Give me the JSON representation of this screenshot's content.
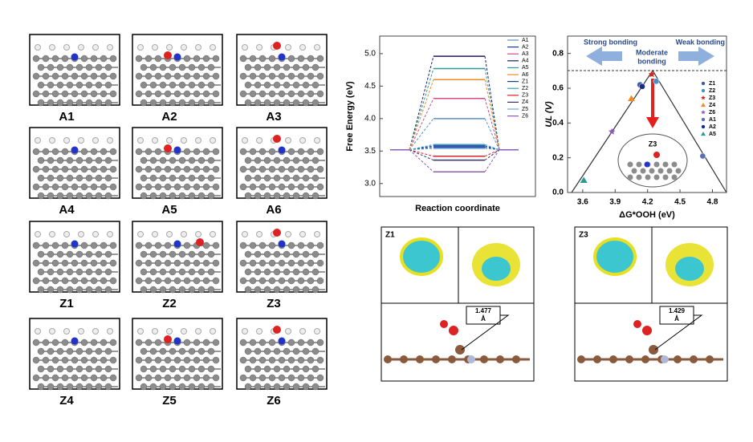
{
  "structures": {
    "labels": [
      "A1",
      "A2",
      "A3",
      "A4",
      "A5",
      "A6",
      "Z1",
      "Z2",
      "Z3",
      "Z4",
      "Z5",
      "Z6"
    ]
  },
  "chart_data": [
    {
      "type": "energy-levels",
      "y_label": "Free Energy (eV)",
      "x_label": "Reaction coordinate",
      "categories": [
        null,
        null,
        null
      ],
      "ylim": [
        2.8,
        5.27
      ],
      "yticks": [
        {
          "value": 3,
          "label": "3.0"
        },
        {
          "value": 3.5,
          "label": "3.5"
        },
        {
          "value": 4,
          "label": "4.0"
        },
        {
          "value": 4.5,
          "label": "4.5"
        },
        {
          "value": 5,
          "label": "5.0"
        }
      ],
      "series": [
        {
          "name": "A1",
          "color": "#5b8fc7",
          "values": [
            3.52,
            4.0,
            3.52
          ]
        },
        {
          "name": "A2",
          "color": "#2233aa",
          "values": [
            3.52,
            3.58,
            3.52
          ]
        },
        {
          "name": "A3",
          "color": "#d64a8a",
          "values": [
            3.52,
            4.31,
            3.52
          ]
        },
        {
          "name": "A4",
          "color": "#1a1a6e",
          "values": [
            3.52,
            4.96,
            3.52
          ]
        },
        {
          "name": "A5",
          "color": "#2a9d8f",
          "values": [
            3.52,
            4.77,
            3.52
          ]
        },
        {
          "name": "A6",
          "color": "#f08a24",
          "values": [
            3.52,
            4.6,
            3.52
          ]
        },
        {
          "name": "Z1",
          "color": "#1f3f8f",
          "values": [
            3.52,
            3.56,
            3.52
          ]
        },
        {
          "name": "Z2",
          "color": "#2aa7b8",
          "values": [
            3.52,
            3.6,
            3.52
          ]
        },
        {
          "name": "Z3",
          "color": "#d62728",
          "values": [
            3.52,
            3.42,
            3.52
          ]
        },
        {
          "name": "Z4",
          "color": "#333366",
          "values": [
            3.52,
            3.36,
            3.52
          ]
        },
        {
          "name": "Z5",
          "color": "#6fa8dc",
          "values": [
            3.52,
            3.54,
            3.52
          ]
        },
        {
          "name": "Z6",
          "color": "#8e5bb5",
          "values": [
            3.52,
            3.18,
            3.52
          ]
        }
      ]
    },
    {
      "type": "scatter",
      "x_label": "ΔG*OOH (eV)",
      "y_label": "UL (V)",
      "xlim": [
        3.46,
        4.93
      ],
      "ylim": [
        0,
        0.9
      ],
      "xticks": [
        3.6,
        3.9,
        4.2,
        4.5,
        4.8
      ],
      "yticks": [
        {
          "value": 0,
          "label": "0.0"
        },
        0.2,
        0.4,
        0.6,
        0.8
      ],
      "annotations": {
        "left": "Strong bonding",
        "right": "Weak bonding",
        "middle": [
          "Moderate",
          "bonding"
        ],
        "inset": "Z3"
      },
      "series": [
        {
          "name": "Z1",
          "color": "#3b5ba5",
          "marker": "circle",
          "x": [
            4.13
          ],
          "values": [
            0.62
          ]
        },
        {
          "name": "Z2",
          "color": "#4a90c8",
          "marker": "circle",
          "x": [
            4.28
          ],
          "values": [
            0.64
          ]
        },
        {
          "name": "Z3",
          "color": "#e3201b",
          "marker": "star",
          "x": [
            4.24
          ],
          "values": [
            0.68
          ]
        },
        {
          "name": "Z4",
          "color": "#f08a24",
          "marker": "triangle",
          "x": [
            4.05
          ],
          "values": [
            0.54
          ]
        },
        {
          "name": "Z6",
          "color": "#8e5bb5",
          "marker": "star",
          "x": [
            3.87
          ],
          "values": [
            0.35
          ]
        },
        {
          "name": "A1",
          "color": "#5b6fb5",
          "marker": "circle",
          "x": [
            4.71
          ],
          "values": [
            0.21
          ]
        },
        {
          "name": "A2",
          "color": "#1a2a8a",
          "marker": "circle",
          "x": [
            4.15
          ],
          "values": [
            0.61
          ]
        },
        {
          "name": "A5",
          "color": "#2a9d8f",
          "marker": "triangle",
          "x": [
            3.61
          ],
          "values": [
            0.07
          ]
        }
      ]
    }
  ],
  "charge_panels": [
    {
      "label": "Z1",
      "bond_length": "1.477",
      "unit": "Å"
    },
    {
      "label": "Z3",
      "bond_length": "1.429",
      "unit": "Å"
    }
  ]
}
